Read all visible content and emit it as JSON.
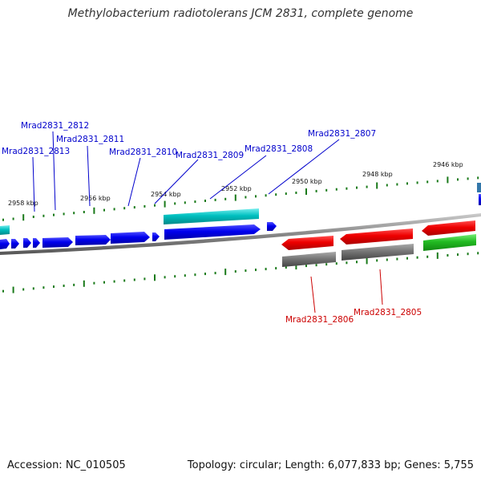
{
  "title": "Methylobacterium radiotolerans JCM 2831, complete genome",
  "footer": {
    "accession": "Accession: NC_010505",
    "topology": "Topology: circular; Length: 6,077,833 bp; Genes: 5,755"
  },
  "colors": {
    "forward_gene": "#0000ee",
    "reverse_gene": "#ee0000",
    "rna_gene": "#00bbbb",
    "green_gene": "#22bb22",
    "gray_gene": "#666666",
    "backbone": "#888888",
    "tick": "#1a7a1a",
    "forward_label": "#0000cc",
    "reverse_label": "#cc0000"
  },
  "kbp_labels": [
    "2958 kbp",
    "2956 kbp",
    "2954 kbp",
    "2952 kbp",
    "2950 kbp",
    "2948 kbp",
    "2946 kbp"
  ],
  "gene_labels_top": [
    "Mrad2831_2812",
    "Mrad2831_2813",
    "Mrad2831_2811",
    "Mrad2831_2810",
    "Mrad2831_2809",
    "Mrad2831_2808",
    "Mrad2831_2807"
  ],
  "gene_labels_bottom": [
    "Mrad2831_2806",
    "Mrad2831_2805"
  ]
}
